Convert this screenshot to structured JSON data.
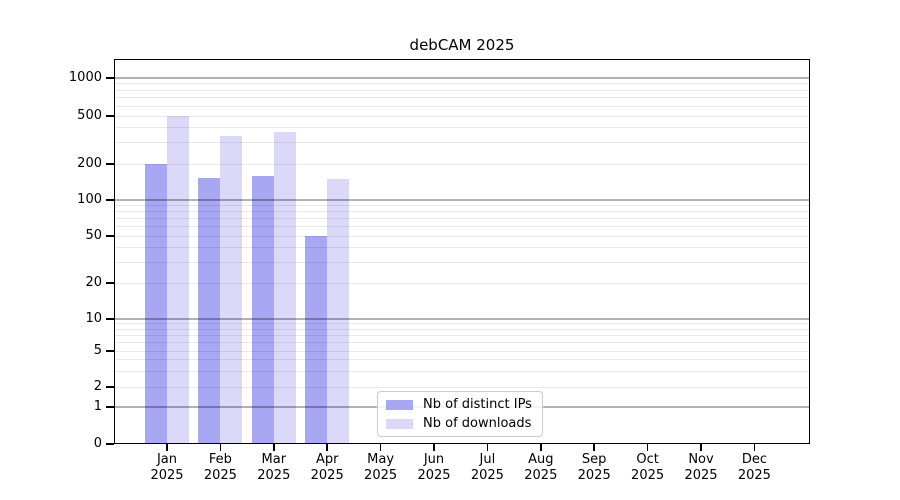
{
  "chart_data": {
    "type": "bar",
    "title": "debCAM 2025",
    "xlabel": "",
    "ylabel": "",
    "yscale": "symlog",
    "grid": true,
    "legend_position": "inside lower-center-left",
    "categories": [
      "Jan",
      "Feb",
      "Mar",
      "Apr",
      "May",
      "Jun",
      "Jul",
      "Aug",
      "Sep",
      "Oct",
      "Nov",
      "Dec"
    ],
    "x_tick_year_line": "2025",
    "yticks": [
      0,
      1,
      2,
      5,
      10,
      20,
      50,
      100,
      200,
      500,
      1000
    ],
    "ylim": [
      0,
      1400
    ],
    "series": [
      {
        "name": "Nb of distinct IPs",
        "color": "#a7a7f3",
        "values": [
          200,
          152,
          158,
          50,
          0,
          0,
          0,
          0,
          0,
          0,
          0,
          0
        ]
      },
      {
        "name": "Nb of downloads",
        "color": "#dadaf8",
        "values": [
          500,
          340,
          370,
          150,
          0,
          0,
          0,
          0,
          0,
          0,
          0,
          0
        ]
      }
    ],
    "colors": {
      "spine": "#000000",
      "major_grid": "#b3b3b3",
      "minor_grid": "#e9e9e9",
      "legend_border": "#cccccc"
    }
  }
}
